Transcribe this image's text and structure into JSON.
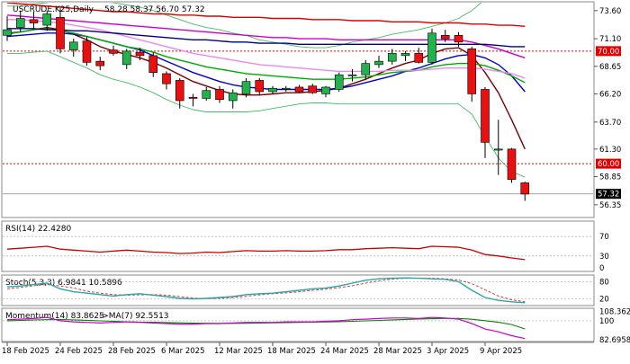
{
  "chart_data": {
    "type": "candlestick",
    "symbol": "USCRUDE.K25,Daily",
    "ohlc_header": "58.28 58.37 56.70 57.32",
    "dates_ticks": [
      "18 Feb 2025",
      "24 Feb 2025",
      "28 Feb 2025",
      "6 Mar 2025",
      "12 Mar 2025",
      "18 Mar 2025",
      "24 Mar 2025",
      "28 Mar 2025",
      "3 Apr 2025",
      "9 Apr 2025"
    ],
    "price_axis": {
      "range": [
        55.3,
        74.3
      ],
      "ticks": [
        "73.60",
        "71.10",
        "68.65",
        "66.20",
        "63.70",
        "61.30",
        "58.85",
        "56.35"
      ]
    },
    "horizontal_levels": [
      {
        "label": "70.00",
        "value": 70.0,
        "color": "#e00000"
      },
      {
        "label": "60.00",
        "value": 60.0,
        "color": "#e00000"
      }
    ],
    "last_price": {
      "label": "57.32",
      "value": 57.32
    },
    "candles": [
      {
        "o": 71.4,
        "h": 73.1,
        "l": 70.9,
        "c": 71.9
      },
      {
        "o": 72.1,
        "h": 73.6,
        "l": 71.7,
        "c": 72.9
      },
      {
        "o": 72.8,
        "h": 73.5,
        "l": 72.0,
        "c": 72.5
      },
      {
        "o": 72.3,
        "h": 73.6,
        "l": 71.8,
        "c": 73.3
      },
      {
        "o": 73.0,
        "h": 73.8,
        "l": 69.8,
        "c": 70.2
      },
      {
        "o": 70.1,
        "h": 71.1,
        "l": 69.5,
        "c": 70.8
      },
      {
        "o": 70.9,
        "h": 71.3,
        "l": 68.7,
        "c": 69.0
      },
      {
        "o": 69.1,
        "h": 69.5,
        "l": 68.3,
        "c": 68.7
      },
      {
        "o": 70.1,
        "h": 70.5,
        "l": 69.6,
        "c": 69.8
      },
      {
        "o": 68.8,
        "h": 70.2,
        "l": 68.4,
        "c": 70.0
      },
      {
        "o": 69.9,
        "h": 70.3,
        "l": 69.2,
        "c": 69.6
      },
      {
        "o": 69.6,
        "h": 69.9,
        "l": 67.7,
        "c": 68.1
      },
      {
        "o": 68.0,
        "h": 68.2,
        "l": 66.6,
        "c": 67.1
      },
      {
        "o": 67.4,
        "h": 67.6,
        "l": 64.9,
        "c": 65.6
      },
      {
        "o": 65.9,
        "h": 66.2,
        "l": 65.1,
        "c": 65.8
      },
      {
        "o": 65.8,
        "h": 66.8,
        "l": 65.6,
        "c": 66.5
      },
      {
        "o": 66.6,
        "h": 66.9,
        "l": 65.4,
        "c": 65.7
      },
      {
        "o": 65.6,
        "h": 66.6,
        "l": 64.9,
        "c": 66.3
      },
      {
        "o": 66.2,
        "h": 67.6,
        "l": 65.9,
        "c": 67.3
      },
      {
        "o": 67.4,
        "h": 67.6,
        "l": 66.1,
        "c": 66.4
      },
      {
        "o": 66.4,
        "h": 66.9,
        "l": 66.2,
        "c": 66.7
      },
      {
        "o": 66.6,
        "h": 66.9,
        "l": 66.4,
        "c": 66.7
      },
      {
        "o": 66.8,
        "h": 67.0,
        "l": 66.3,
        "c": 66.4
      },
      {
        "o": 66.9,
        "h": 67.1,
        "l": 66.2,
        "c": 66.3
      },
      {
        "o": 66.2,
        "h": 66.9,
        "l": 65.9,
        "c": 66.8
      },
      {
        "o": 66.6,
        "h": 68.1,
        "l": 66.4,
        "c": 67.9
      },
      {
        "o": 67.9,
        "h": 68.4,
        "l": 67.3,
        "c": 67.9
      },
      {
        "o": 67.9,
        "h": 69.2,
        "l": 67.5,
        "c": 68.9
      },
      {
        "o": 68.8,
        "h": 69.6,
        "l": 68.5,
        "c": 69.1
      },
      {
        "o": 69.1,
        "h": 70.2,
        "l": 68.8,
        "c": 69.8
      },
      {
        "o": 69.6,
        "h": 70.0,
        "l": 69.1,
        "c": 69.8
      },
      {
        "o": 69.8,
        "h": 70.3,
        "l": 68.9,
        "c": 69.0
      },
      {
        "o": 69.0,
        "h": 72.0,
        "l": 68.8,
        "c": 71.6
      },
      {
        "o": 71.4,
        "h": 71.9,
        "l": 70.8,
        "c": 71.1
      },
      {
        "o": 71.4,
        "h": 71.7,
        "l": 70.4,
        "c": 70.8
      },
      {
        "o": 70.2,
        "h": 70.4,
        "l": 65.5,
        "c": 66.2
      },
      {
        "o": 66.6,
        "h": 66.8,
        "l": 60.5,
        "c": 61.9
      },
      {
        "o": 61.3,
        "h": 63.9,
        "l": 59.0,
        "c": 61.3
      },
      {
        "o": 61.3,
        "h": 61.4,
        "l": 58.3,
        "c": 58.6
      },
      {
        "o": 58.3,
        "h": 58.4,
        "l": 56.7,
        "c": 57.3
      }
    ],
    "moving_averages": [
      {
        "color": "#7a0000",
        "values": [
          71.6,
          71.7,
          71.9,
          72.1,
          71.9,
          71.5,
          71.0,
          70.4,
          70.0,
          69.7,
          69.4,
          69.0,
          68.5,
          67.9,
          67.3,
          66.9,
          66.5,
          66.2,
          66.1,
          66.1,
          66.2,
          66.3,
          66.3,
          66.4,
          66.5,
          66.7,
          67.1,
          67.5,
          68.0,
          68.5,
          68.9,
          69.2,
          69.8,
          70.2,
          70.3,
          69.6,
          68.1,
          66.3,
          63.9,
          61.3
        ]
      },
      {
        "color": "#0000cc",
        "values": [
          71.3,
          71.4,
          71.5,
          71.6,
          71.6,
          71.5,
          71.3,
          71.0,
          70.7,
          70.4,
          70.1,
          69.6,
          69.1,
          68.6,
          68.1,
          67.7,
          67.3,
          67.0,
          66.8,
          66.7,
          66.6,
          66.6,
          66.6,
          66.6,
          66.6,
          66.7,
          66.9,
          67.2,
          67.5,
          67.8,
          68.2,
          68.5,
          68.9,
          69.3,
          69.6,
          69.7,
          69.4,
          68.8,
          67.8,
          66.4
        ]
      },
      {
        "color": "#00aa00",
        "values": [
          71.5,
          71.7,
          71.9,
          72.0,
          71.8,
          71.6,
          71.3,
          71.0,
          70.7,
          70.4,
          70.2,
          69.9,
          69.5,
          69.2,
          68.9,
          68.6,
          68.4,
          68.2,
          68.0,
          67.9,
          67.8,
          67.7,
          67.6,
          67.5,
          67.5,
          67.5,
          67.6,
          67.7,
          67.9,
          68.1,
          68.2,
          68.3,
          68.6,
          68.8,
          68.9,
          68.9,
          68.7,
          68.3,
          67.8,
          67.2
        ]
      },
      {
        "color": "#ee88ee",
        "values": [
          72.8,
          72.8,
          72.7,
          72.6,
          72.5,
          72.3,
          72.1,
          71.9,
          71.6,
          71.3,
          71.0,
          70.7,
          70.4,
          70.1,
          69.8,
          69.6,
          69.4,
          69.2,
          69.0,
          68.8,
          68.7,
          68.6,
          68.5,
          68.4,
          68.3,
          68.2,
          68.2,
          68.2,
          68.2,
          68.3,
          68.3,
          68.3,
          68.4,
          68.5,
          68.5,
          68.5,
          68.4,
          68.2,
          68.0,
          67.6
        ]
      },
      {
        "color": "#cc00cc",
        "values": [
          73.2,
          73.1,
          73.0,
          72.9,
          72.8,
          72.7,
          72.6,
          72.5,
          72.4,
          72.3,
          72.2,
          72.1,
          72.0,
          71.9,
          71.8,
          71.7,
          71.6,
          71.5,
          71.4,
          71.3,
          71.2,
          71.2,
          71.1,
          71.1,
          71.1,
          71.0,
          71.0,
          71.0,
          71.0,
          71.0,
          71.0,
          71.0,
          71.0,
          71.0,
          71.0,
          70.8,
          70.5,
          70.2,
          69.8,
          69.4
        ]
      },
      {
        "color": "#000080",
        "values": [
          72.0,
          72.0,
          72.0,
          71.9,
          71.9,
          71.8,
          71.8,
          71.7,
          71.6,
          71.5,
          71.4,
          71.3,
          71.2,
          71.1,
          71.0,
          71.0,
          70.9,
          70.8,
          70.8,
          70.7,
          70.7,
          70.7,
          70.6,
          70.6,
          70.6,
          70.6,
          70.6,
          70.6,
          70.6,
          70.6,
          70.6,
          70.6,
          70.6,
          70.6,
          70.6,
          70.6,
          70.6,
          70.5,
          70.4,
          70.4
        ]
      },
      {
        "color": "#dd0000",
        "values": [
          74.3,
          74.2,
          74.1,
          74.0,
          73.9,
          73.8,
          73.7,
          73.6,
          73.5,
          73.5,
          73.4,
          73.3,
          73.3,
          73.2,
          73.2,
          73.1,
          73.1,
          73.0,
          73.0,
          73.0,
          72.9,
          72.9,
          72.9,
          72.8,
          72.8,
          72.8,
          72.7,
          72.7,
          72.7,
          72.6,
          72.6,
          72.6,
          72.5,
          72.5,
          72.5,
          72.4,
          72.4,
          72.3,
          72.3,
          72.2
        ]
      }
    ],
    "bollinger": {
      "color": "#44bb66",
      "upper": [
        74.0,
        74.0,
        74.2,
        74.3,
        74.6,
        74.6,
        74.5,
        74.4,
        74.3,
        74.1,
        73.9,
        73.6,
        73.2,
        72.8,
        72.4,
        72.1,
        71.9,
        71.6,
        71.4,
        71.0,
        70.8,
        70.6,
        70.4,
        70.3,
        70.3,
        70.5,
        70.8,
        71.0,
        71.2,
        71.5,
        71.7,
        71.9,
        72.2,
        72.5,
        72.9,
        73.6,
        74.6,
        75.5,
        76.0,
        76.5
      ],
      "lower": [
        69.8,
        69.8,
        69.9,
        70.0,
        69.5,
        69.0,
        68.5,
        67.9,
        67.5,
        67.2,
        66.8,
        66.3,
        65.7,
        65.2,
        64.8,
        64.6,
        64.6,
        64.6,
        64.6,
        64.7,
        64.9,
        65.1,
        65.3,
        65.4,
        65.4,
        65.3,
        65.3,
        65.3,
        65.3,
        65.3,
        65.3,
        65.3,
        65.3,
        65.3,
        65.3,
        64.4,
        62.4,
        60.5,
        59.3,
        58.8
      ]
    },
    "rsi": {
      "label": "RSI(14) 22.4280",
      "ticks": [
        "70",
        "30",
        "0"
      ],
      "range": [
        0,
        100
      ],
      "color": "#cc0000",
      "values": [
        44,
        46,
        48,
        50,
        44,
        42,
        40,
        38,
        40,
        42,
        40,
        38,
        37,
        35,
        36,
        38,
        37,
        39,
        41,
        40,
        40,
        41,
        40,
        40,
        41,
        43,
        43,
        45,
        46,
        47,
        46,
        45,
        50,
        49,
        48,
        42,
        33,
        30,
        26,
        22.43
      ]
    },
    "stoch": {
      "label": "Stoch(5,3,3) 6.9841 10.5896",
      "ticks": [
        "80",
        "20"
      ],
      "range": [
        0,
        100
      ],
      "main_color": "#2aa6aa",
      "signal_color": "#d04040",
      "main": [
        62,
        65,
        70,
        75,
        55,
        45,
        40,
        35,
        30,
        35,
        38,
        33,
        28,
        22,
        20,
        22,
        25,
        28,
        35,
        38,
        40,
        45,
        50,
        55,
        58,
        65,
        75,
        85,
        90,
        92,
        93,
        92,
        90,
        88,
        80,
        50,
        25,
        15,
        10,
        6.98
      ],
      "signal": [
        55,
        60,
        66,
        70,
        65,
        58,
        47,
        40,
        35,
        33,
        34,
        35,
        33,
        28,
        23,
        21,
        22,
        25,
        29,
        34,
        38,
        41,
        45,
        50,
        54,
        59,
        66,
        75,
        83,
        89,
        92,
        92,
        92,
        90,
        86,
        73,
        52,
        30,
        17,
        10.59
      ]
    },
    "momentum": {
      "label": "Momentum(14) 83.8625",
      "ma_label": "->MA(7) 92.5513",
      "ticks": [
        "108.3621",
        "100",
        "82.6958"
      ],
      "range": [
        82.0,
        110.5
      ],
      "main_color": "#cc00cc",
      "ma_color": "#008800",
      "main": [
        101,
        101.5,
        102,
        103,
        100,
        99,
        98.5,
        98,
        98.5,
        99,
        98.5,
        98,
        97.5,
        97,
        97,
        97.5,
        97.5,
        98,
        98.5,
        98.5,
        98.5,
        99,
        99,
        99,
        99.5,
        100,
        101,
        101.5,
        102,
        102.5,
        102.5,
        102,
        103,
        102.5,
        101.5,
        97.5,
        92.5,
        90,
        86.5,
        83.86
      ],
      "ma": [
        100,
        100.3,
        100.7,
        101,
        101.1,
        100.8,
        100.4,
        99.9,
        99.5,
        99.1,
        98.8,
        98.6,
        98.4,
        98.1,
        97.9,
        97.7,
        97.6,
        97.6,
        97.7,
        97.9,
        98.1,
        98.3,
        98.5,
        98.7,
        98.9,
        99.2,
        99.5,
        99.9,
        100.3,
        100.8,
        101.2,
        101.6,
        101.9,
        102.1,
        102.1,
        101.4,
        100.1,
        98.6,
        96.6,
        92.55
      ]
    }
  }
}
